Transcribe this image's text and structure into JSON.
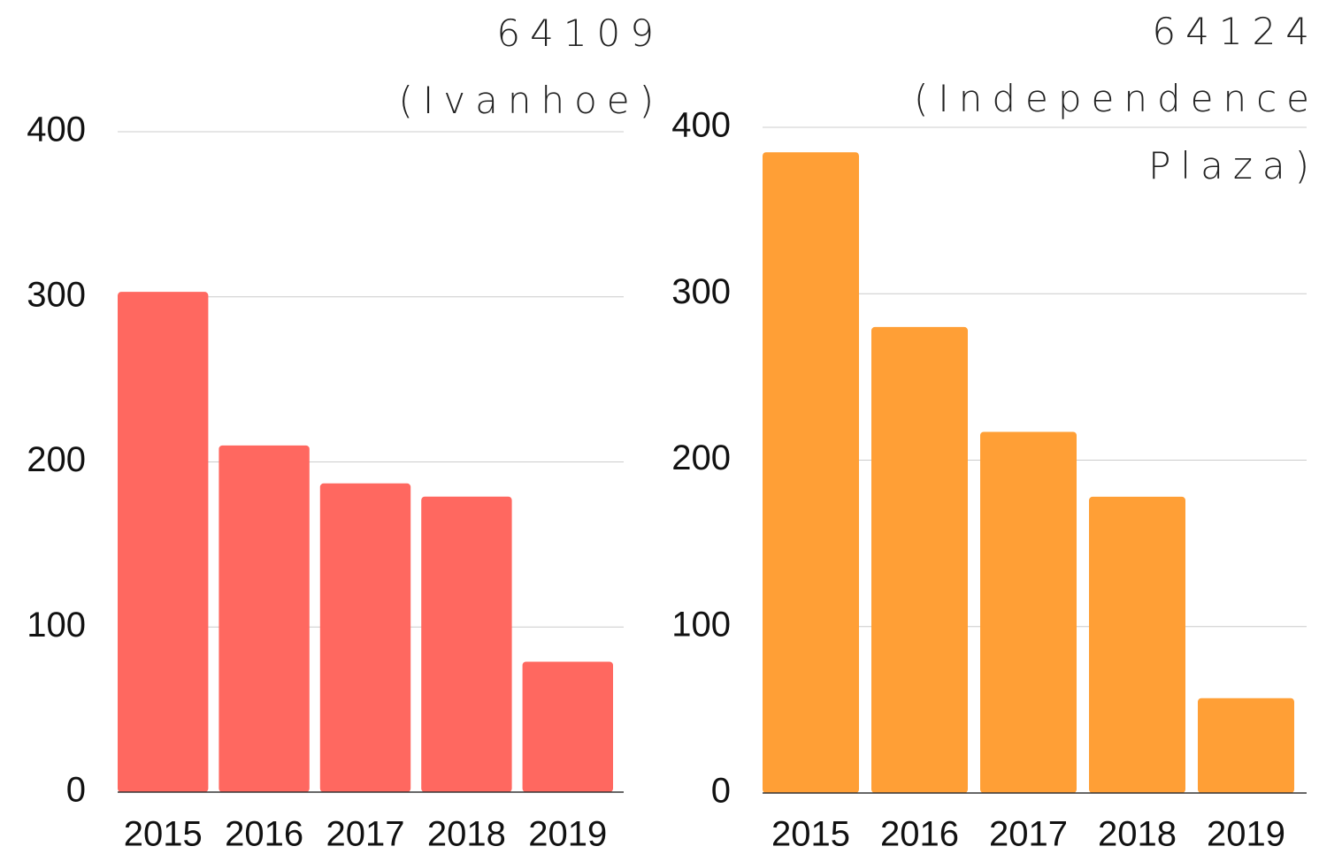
{
  "chart_data": [
    {
      "type": "bar",
      "title": "64109 (Ivanhoe)",
      "categories": [
        "2015",
        "2016",
        "2017",
        "2018",
        "2019"
      ],
      "values": [
        303,
        210,
        187,
        179,
        79
      ],
      "color": "#ff6860",
      "ylim": [
        0,
        400
      ],
      "yticks": [
        0,
        100,
        200,
        300,
        400
      ],
      "grid": true
    },
    {
      "type": "bar",
      "title": "64124 (Independence Plaza)",
      "categories": [
        "2015",
        "2016",
        "2017",
        "2018",
        "2019"
      ],
      "values": [
        385,
        280,
        217,
        178,
        57
      ],
      "color": "#ff9f36",
      "ylim": [
        0,
        400
      ],
      "yticks": [
        0,
        100,
        200,
        300,
        400
      ],
      "grid": true
    }
  ]
}
